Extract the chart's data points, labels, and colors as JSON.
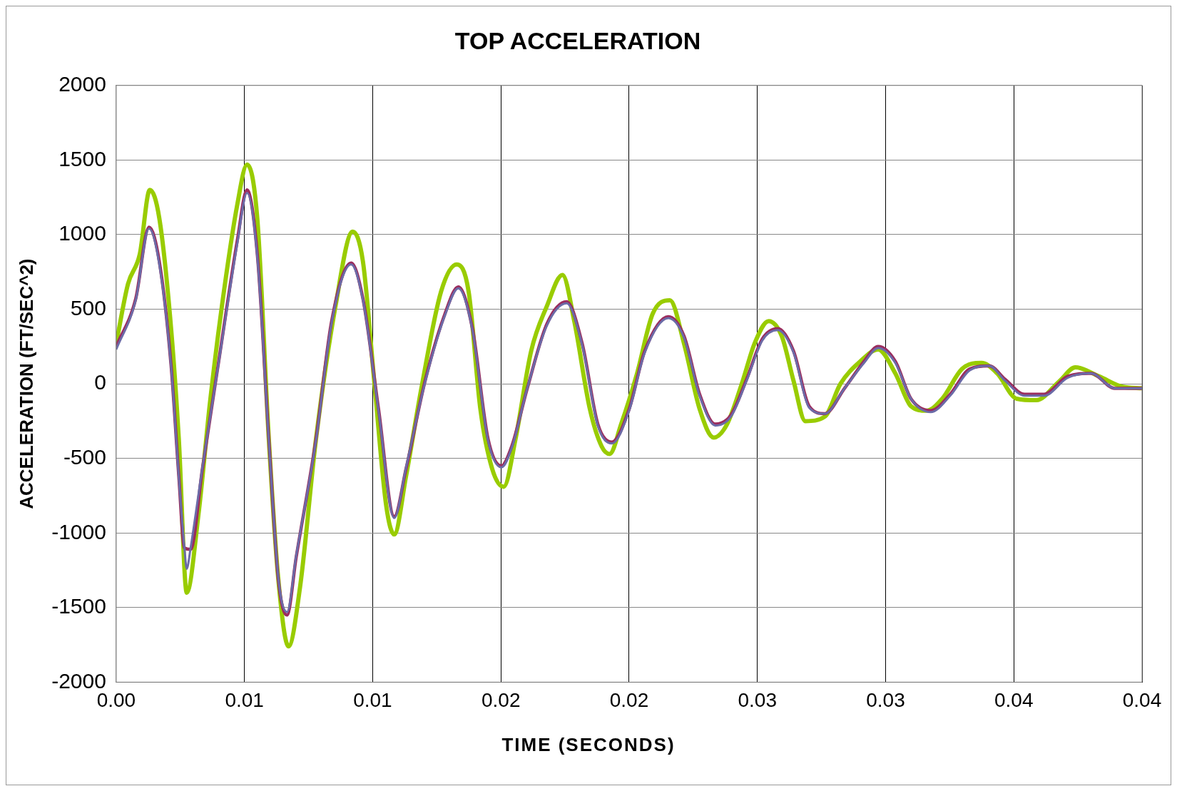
{
  "chart_data": {
    "type": "line",
    "title": "TOP ACCELERATION",
    "xlabel": "TIME (SECONDS)",
    "ylabel": "ACCELERATION (FT/SEC^2)",
    "xlim": [
      0,
      0.04
    ],
    "ylim": [
      -2000,
      2000
    ],
    "xticks": [
      {
        "value": 0,
        "label": "0.00"
      },
      {
        "value": 0.005,
        "label": "0.01"
      },
      {
        "value": 0.01,
        "label": "0.01"
      },
      {
        "value": 0.015,
        "label": "0.02"
      },
      {
        "value": 0.02,
        "label": "0.02"
      },
      {
        "value": 0.025,
        "label": "0.03"
      },
      {
        "value": 0.03,
        "label": "0.03"
      },
      {
        "value": 0.035,
        "label": "0.04"
      },
      {
        "value": 0.04,
        "label": "0.04"
      }
    ],
    "yticks": [
      -2000,
      -1500,
      -1000,
      -500,
      0,
      500,
      1000,
      1500,
      2000
    ],
    "grid": true,
    "legend": false,
    "marker": "none",
    "line_style": "solid",
    "series": [
      {
        "color": "#6b6ba8",
        "x": [
          0,
          0.00076,
          0.00128,
          0.00168,
          0.00214,
          0.00244,
          0.00266,
          0.00275,
          0.0029,
          0.00336,
          0.00397,
          0.00473,
          0.0051,
          0.0055,
          0.00595,
          0.00632,
          0.00666,
          0.00702,
          0.00779,
          0.0084,
          0.00916,
          0.00962,
          0.01023,
          0.01084,
          0.0113,
          0.01206,
          0.01282,
          0.01334,
          0.01389,
          0.0145,
          0.01502,
          0.01542,
          0.01603,
          0.01679,
          0.01756,
          0.01817,
          0.01878,
          0.01933,
          0.02,
          0.02061,
          0.02153,
          0.02214,
          0.02275,
          0.02336,
          0.02397,
          0.02458,
          0.02519,
          0.0258,
          0.02641,
          0.02702,
          0.02763,
          0.0284,
          0.02916,
          0.02971,
          0.03038,
          0.03099,
          0.03176,
          0.03252,
          0.03328,
          0.03405,
          0.03466,
          0.03542,
          0.03618,
          0.0371,
          0.03802,
          0.03893,
          0.04
        ],
        "values": [
          230,
          560,
          1040,
          800,
          110,
          -630,
          -1100,
          -1240,
          -1100,
          -560,
          110,
          950,
          1280,
          850,
          -380,
          -1300,
          -1530,
          -1150,
          -380,
          410,
          800,
          560,
          -180,
          -900,
          -560,
          20,
          460,
          640,
          360,
          -380,
          -560,
          -430,
          -30,
          390,
          540,
          260,
          -280,
          -400,
          -180,
          210,
          440,
          310,
          -80,
          -280,
          -220,
          20,
          290,
          360,
          210,
          -160,
          -200,
          -30,
          140,
          240,
          140,
          -100,
          -190,
          -80,
          90,
          120,
          20,
          -80,
          -80,
          40,
          70,
          -30,
          -30
        ]
      },
      {
        "color": "#9b2d5e",
        "x": [
          0,
          0.00076,
          0.00128,
          0.00168,
          0.00214,
          0.00244,
          0.00266,
          0.0029,
          0.00336,
          0.00397,
          0.00473,
          0.0051,
          0.0055,
          0.00595,
          0.00632,
          0.00666,
          0.00702,
          0.00779,
          0.0084,
          0.00916,
          0.00962,
          0.01023,
          0.01084,
          0.0113,
          0.01206,
          0.01282,
          0.01334,
          0.01389,
          0.0145,
          0.01502,
          0.01542,
          0.01603,
          0.01679,
          0.01756,
          0.01817,
          0.01878,
          0.01933,
          0.02,
          0.02061,
          0.02153,
          0.02214,
          0.02275,
          0.02336,
          0.02397,
          0.02458,
          0.02519,
          0.0258,
          0.02641,
          0.02702,
          0.02763,
          0.0284,
          0.02916,
          0.02971,
          0.03038,
          0.03099,
          0.03176,
          0.03252,
          0.03328,
          0.03405,
          0.03466,
          0.03542,
          0.03618,
          0.0371,
          0.03802,
          0.03893,
          0.04
        ],
        "values": [
          250,
          570,
          1050,
          820,
          120,
          -620,
          -1100,
          -1110,
          -570,
          120,
          970,
          1300,
          870,
          -370,
          -1310,
          -1550,
          -1160,
          -370,
          420,
          810,
          570,
          -170,
          -890,
          -570,
          30,
          470,
          650,
          370,
          -370,
          -550,
          -420,
          -30,
          400,
          550,
          270,
          -270,
          -390,
          -170,
          220,
          450,
          320,
          -70,
          -270,
          -210,
          30,
          300,
          370,
          220,
          -150,
          -200,
          -30,
          150,
          250,
          150,
          -100,
          -180,
          -70,
          100,
          120,
          30,
          -70,
          -70,
          50,
          70,
          -30,
          -30
        ]
      },
      {
        "color": "#99cc00",
        "x": [
          0,
          0.00046,
          0.00092,
          0.00131,
          0.00168,
          0.00214,
          0.00244,
          0.00275,
          0.00321,
          0.00366,
          0.00412,
          0.00473,
          0.0051,
          0.0055,
          0.00595,
          0.00632,
          0.00672,
          0.00717,
          0.00779,
          0.00855,
          0.00922,
          0.00962,
          0.01008,
          0.01053,
          0.01084,
          0.0113,
          0.01191,
          0.01267,
          0.01328,
          0.01374,
          0.0142,
          0.01466,
          0.01511,
          0.01557,
          0.01618,
          0.01679,
          0.0174,
          0.01786,
          0.01847,
          0.01893,
          0.01924,
          0.01969,
          0.02031,
          0.02092,
          0.02159,
          0.02214,
          0.02275,
          0.0233,
          0.02382,
          0.02443,
          0.02489,
          0.02544,
          0.02595,
          0.02641,
          0.02687,
          0.02763,
          0.02824,
          0.02901,
          0.02971,
          0.03038,
          0.03099,
          0.0316,
          0.03221,
          0.03298,
          0.03374,
          0.03435,
          0.03511,
          0.03588,
          0.03679,
          0.0374,
          0.03832,
          0.03924,
          0.04
        ],
        "values": [
          270,
          670,
          870,
          1300,
          1110,
          370,
          -370,
          -1400,
          -870,
          -120,
          520,
          1210,
          1470,
          1110,
          -370,
          -1310,
          -1760,
          -1360,
          -370,
          520,
          1020,
          820,
          -20,
          -820,
          -1010,
          -620,
          -20,
          620,
          800,
          620,
          -170,
          -570,
          -690,
          -370,
          220,
          520,
          730,
          420,
          -170,
          -420,
          -470,
          -270,
          70,
          470,
          560,
          270,
          -170,
          -360,
          -270,
          20,
          270,
          420,
          320,
          20,
          -250,
          -220,
          0,
          150,
          230,
          70,
          -150,
          -180,
          -100,
          100,
          140,
          70,
          -100,
          -110,
          20,
          110,
          50,
          -20,
          -30
        ]
      }
    ]
  }
}
